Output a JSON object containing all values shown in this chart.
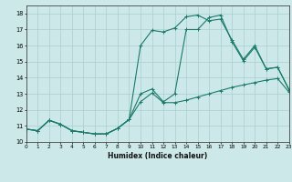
{
  "xlabel": "Humidex (Indice chaleur)",
  "xlim": [
    0,
    23
  ],
  "ylim": [
    10,
    18.5
  ],
  "yticks": [
    10,
    11,
    12,
    13,
    14,
    15,
    16,
    17,
    18
  ],
  "xticks": [
    0,
    1,
    2,
    3,
    4,
    5,
    6,
    7,
    8,
    9,
    10,
    11,
    12,
    13,
    14,
    15,
    16,
    17,
    18,
    19,
    20,
    21,
    22,
    23
  ],
  "bg_color": "#cde8e8",
  "line_color": "#1a7a6a",
  "grid_color": "#a8cece",
  "series1_x": [
    0,
    1,
    2,
    3,
    4,
    5,
    6,
    7,
    8,
    9,
    10,
    11,
    12,
    13,
    14,
    15,
    16,
    17,
    18,
    19,
    20,
    21,
    22,
    23
  ],
  "series1_y": [
    10.8,
    10.7,
    11.35,
    11.1,
    10.7,
    10.6,
    10.5,
    10.5,
    10.85,
    11.4,
    16.0,
    16.95,
    16.85,
    17.1,
    17.8,
    17.9,
    17.55,
    17.65,
    16.35,
    15.15,
    16.0,
    14.55,
    14.65,
    13.25
  ],
  "series2_x": [
    0,
    1,
    2,
    3,
    4,
    5,
    6,
    7,
    8,
    9,
    10,
    11,
    12,
    13,
    14,
    15,
    16,
    17,
    18,
    19,
    20,
    21,
    22,
    23
  ],
  "series2_y": [
    10.8,
    10.7,
    11.35,
    11.1,
    10.7,
    10.6,
    10.5,
    10.5,
    10.85,
    11.4,
    13.0,
    13.3,
    12.5,
    13.0,
    17.0,
    17.0,
    17.75,
    17.9,
    16.25,
    15.05,
    15.9,
    14.55,
    14.65,
    13.25
  ],
  "series3_x": [
    0,
    1,
    2,
    3,
    4,
    5,
    6,
    7,
    8,
    9,
    10,
    11,
    12,
    13,
    14,
    15,
    16,
    17,
    18,
    19,
    20,
    21,
    22,
    23
  ],
  "series3_y": [
    10.8,
    10.7,
    11.35,
    11.1,
    10.7,
    10.6,
    10.5,
    10.5,
    10.85,
    11.4,
    12.5,
    13.05,
    12.45,
    12.45,
    12.6,
    12.8,
    13.0,
    13.2,
    13.4,
    13.55,
    13.7,
    13.85,
    13.95,
    13.1
  ]
}
